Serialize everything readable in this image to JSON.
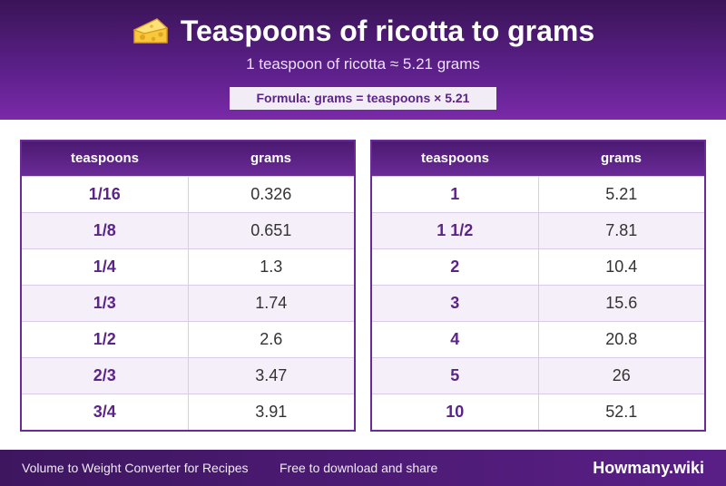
{
  "header": {
    "title": "Teaspoons of ricotta to grams",
    "title_icon": "cheese-icon",
    "subtitle": "1 teaspoon of ricotta ≈ 5.21 grams",
    "formula": "Formula: grams = teaspoons × 5.21"
  },
  "tables": {
    "left": {
      "col_tsp": "teaspoons",
      "col_g": "grams",
      "rows": [
        {
          "tsp": "1/16",
          "g": "0.326"
        },
        {
          "tsp": "1/8",
          "g": "0.651"
        },
        {
          "tsp": "1/4",
          "g": "1.3"
        },
        {
          "tsp": "1/3",
          "g": "1.74"
        },
        {
          "tsp": "1/2",
          "g": "2.6"
        },
        {
          "tsp": "2/3",
          "g": "3.47"
        },
        {
          "tsp": "3/4",
          "g": "3.91"
        }
      ]
    },
    "right": {
      "col_tsp": "teaspoons",
      "col_g": "grams",
      "rows": [
        {
          "tsp": "1",
          "g": "5.21"
        },
        {
          "tsp": "1 1/2",
          "g": "7.81"
        },
        {
          "tsp": "2",
          "g": "10.4"
        },
        {
          "tsp": "3",
          "g": "15.6"
        },
        {
          "tsp": "4",
          "g": "20.8"
        },
        {
          "tsp": "5",
          "g": "26"
        },
        {
          "tsp": "10",
          "g": "52.1"
        }
      ]
    }
  },
  "footer": {
    "left_text": "Volume to Weight Converter for Recipes",
    "middle_text": "Free to download and share",
    "brand": "Howmany.wiki"
  },
  "colors": {
    "accent": "#5b2486",
    "header_dark": "#3a1457",
    "header_light": "#7a2aa8"
  }
}
